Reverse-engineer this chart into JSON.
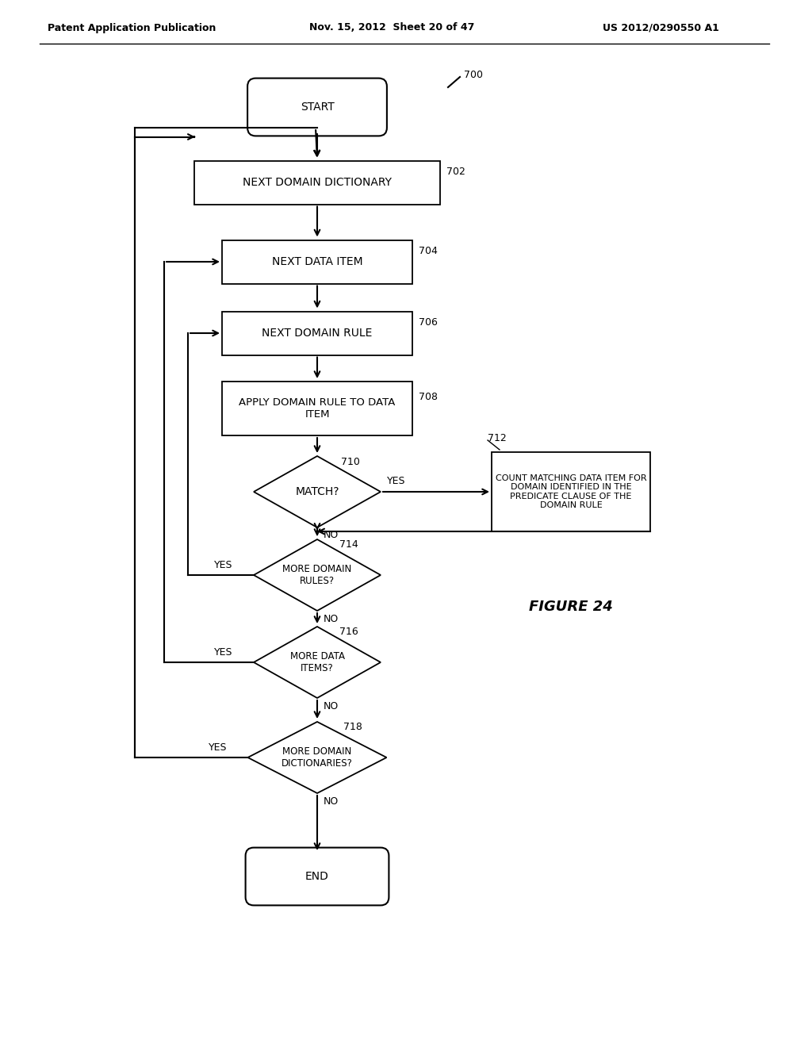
{
  "header_left": "Patent Application Publication",
  "header_mid": "Nov. 15, 2012  Sheet 20 of 47",
  "header_right": "US 2012/0290550 A1",
  "figure_label": "FIGURE 24",
  "ref_700": "700",
  "ref_702": "702",
  "ref_704": "704",
  "ref_706": "706",
  "ref_708": "708",
  "ref_710": "710",
  "ref_712": "712",
  "ref_714": "714",
  "ref_716": "716",
  "ref_718": "718",
  "label_start": "START",
  "label_end": "END",
  "label_702": "NEXT DOMAIN DICTIONARY",
  "label_704": "NEXT DATA ITEM",
  "label_706": "NEXT DOMAIN RULE",
  "label_708": "APPLY DOMAIN RULE TO DATA\nITEM",
  "label_710": "MATCH?",
  "label_712": "COUNT MATCHING DATA ITEM FOR\nDOMAIN IDENTIFIED IN THE\nPREDICATE CLAUSE OF THE\nDOMAIN RULE",
  "label_714": "MORE DOMAIN\nRULES?",
  "label_716": "MORE DATA\nITEMS?",
  "label_718": "MORE DOMAIN\nDICTIONARIES?",
  "yes": "YES",
  "no": "NO",
  "bg_color": "#ffffff",
  "text_color": "#000000"
}
